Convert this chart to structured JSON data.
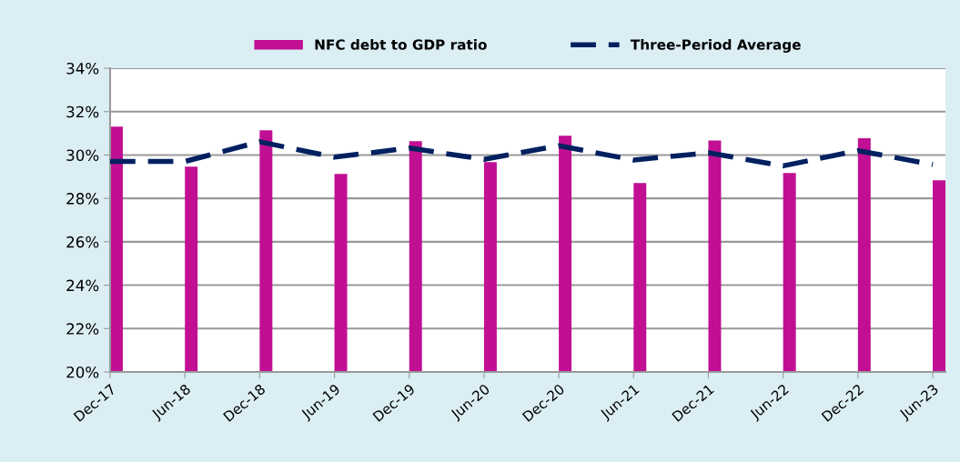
{
  "chart_data": {
    "type": "bar",
    "categories": [
      "Dec-17",
      "Jun-18",
      "Dec-18",
      "Jun-19",
      "Dec-19",
      "Jun-20",
      "Dec-20",
      "Jun-21",
      "Dec-21",
      "Jun-22",
      "Dec-22",
      "Jun-23"
    ],
    "series": [
      {
        "name": "NFC debt to GDP ratio",
        "color": "#c00f92",
        "values": [
          31.31,
          29.46,
          31.14,
          29.13,
          30.64,
          29.67,
          30.89,
          28.71,
          30.67,
          29.17,
          30.77,
          28.83
        ]
      },
      {
        "name": "Three-Period Average",
        "type": "line",
        "color": "#002060",
        "line_style": "dashed",
        "values": [
          29.7,
          29.7,
          30.61,
          29.9,
          30.32,
          29.8,
          30.43,
          29.77,
          30.1,
          29.5,
          30.2,
          29.56
        ]
      }
    ],
    "ylim": [
      20,
      34
    ],
    "yticks": [
      {
        "value": 20,
        "label": "20%"
      },
      {
        "value": 22,
        "label": "22%"
      },
      {
        "value": 24,
        "label": "24%"
      },
      {
        "value": 26,
        "label": "26%"
      },
      {
        "value": 28,
        "label": "28%"
      },
      {
        "value": 30,
        "label": "30%"
      },
      {
        "value": 32,
        "label": "32%"
      },
      {
        "value": 34,
        "label": "34%"
      }
    ],
    "grid": "y",
    "legend": "top"
  }
}
